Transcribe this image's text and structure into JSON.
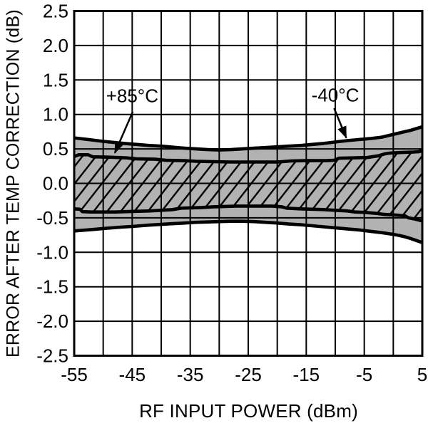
{
  "chart_data": {
    "type": "area",
    "title": "",
    "xlabel": "RF INPUT POWER (dBm)",
    "ylabel": "ERROR AFTER TEMP CORRECTION (dB)",
    "xlim": [
      -55,
      5
    ],
    "ylim": [
      -2.5,
      2.5
    ],
    "x_ticks": [
      "-55",
      "-45",
      "-35",
      "-25",
      "-15",
      "-5",
      "5"
    ],
    "x_tick_values": [
      -55,
      -45,
      -35,
      -25,
      -15,
      -5,
      5
    ],
    "y_ticks": [
      "2.5",
      "2.0",
      "1.5",
      "1.0",
      "0.5",
      "0.0",
      "-0.5",
      "-1.0",
      "-1.5",
      "-2.0",
      "-2.5"
    ],
    "y_tick_values": [
      2.5,
      2.0,
      1.5,
      1.0,
      0.5,
      0.0,
      -0.5,
      -1.0,
      -1.5,
      -2.0,
      -2.5
    ],
    "x_grid_step": 5,
    "y_grid_step": 0.5,
    "grid": true,
    "legend": "none",
    "bands": [
      {
        "name": "minus40C-error-band",
        "label": "-40°C",
        "hatch": false,
        "upper": [
          [
            -55,
            0.66
          ],
          [
            -52,
            0.63
          ],
          [
            -50,
            0.61
          ],
          [
            -47,
            0.585
          ],
          [
            -45,
            0.57
          ],
          [
            -42,
            0.55
          ],
          [
            -40,
            0.54
          ],
          [
            -38,
            0.525
          ],
          [
            -36,
            0.51
          ],
          [
            -34,
            0.5
          ],
          [
            -32,
            0.49
          ],
          [
            -30,
            0.485
          ],
          [
            -28,
            0.49
          ],
          [
            -26,
            0.5
          ],
          [
            -24,
            0.51
          ],
          [
            -22,
            0.52
          ],
          [
            -20,
            0.53
          ],
          [
            -18,
            0.54
          ],
          [
            -16,
            0.55
          ],
          [
            -14,
            0.565
          ],
          [
            -12,
            0.58
          ],
          [
            -10,
            0.6
          ],
          [
            -8,
            0.62
          ],
          [
            -6,
            0.635
          ],
          [
            -4,
            0.65
          ],
          [
            -2,
            0.67
          ],
          [
            0,
            0.71
          ],
          [
            2,
            0.75
          ],
          [
            3,
            0.77
          ],
          [
            4,
            0.795
          ],
          [
            5,
            0.82
          ]
        ],
        "lower": [
          [
            -55,
            -0.69
          ],
          [
            -52,
            -0.67
          ],
          [
            -50,
            -0.655
          ],
          [
            -47,
            -0.635
          ],
          [
            -45,
            -0.625
          ],
          [
            -42,
            -0.605
          ],
          [
            -40,
            -0.595
          ],
          [
            -38,
            -0.585
          ],
          [
            -36,
            -0.575
          ],
          [
            -34,
            -0.565
          ],
          [
            -32,
            -0.56
          ],
          [
            -30,
            -0.555
          ],
          [
            -28,
            -0.55
          ],
          [
            -26,
            -0.55
          ],
          [
            -24,
            -0.555
          ],
          [
            -22,
            -0.565
          ],
          [
            -20,
            -0.575
          ],
          [
            -18,
            -0.59
          ],
          [
            -16,
            -0.6
          ],
          [
            -14,
            -0.615
          ],
          [
            -12,
            -0.63
          ],
          [
            -10,
            -0.645
          ],
          [
            -8,
            -0.66
          ],
          [
            -6,
            -0.675
          ],
          [
            -4,
            -0.695
          ],
          [
            -2,
            -0.715
          ],
          [
            0,
            -0.74
          ],
          [
            1,
            -0.755
          ],
          [
            2,
            -0.775
          ],
          [
            3,
            -0.8
          ],
          [
            4,
            -0.83
          ],
          [
            5,
            -0.86
          ]
        ]
      },
      {
        "name": "plus85C-error-band",
        "label": "+85°C",
        "hatch": true,
        "upper": [
          [
            -55,
            0.39
          ],
          [
            -54.2,
            0.415
          ],
          [
            -52.6,
            0.415
          ],
          [
            -51.8,
            0.385
          ],
          [
            -49,
            0.38
          ],
          [
            -46,
            0.37
          ],
          [
            -44.2,
            0.355
          ],
          [
            -41,
            0.35
          ],
          [
            -39.2,
            0.335
          ],
          [
            -36,
            0.33
          ],
          [
            -34,
            0.32
          ],
          [
            -31,
            0.315
          ],
          [
            -28,
            0.31
          ],
          [
            -24,
            0.31
          ],
          [
            -20,
            0.31
          ],
          [
            -17.5,
            0.325
          ],
          [
            -15,
            0.33
          ],
          [
            -11.5,
            0.33
          ],
          [
            -10.2,
            0.335
          ],
          [
            -9.4,
            0.365
          ],
          [
            -7,
            0.37
          ],
          [
            -4.5,
            0.375
          ],
          [
            -2.6,
            0.4
          ],
          [
            -1.4,
            0.43
          ],
          [
            -0.5,
            0.44
          ],
          [
            1.5,
            0.448
          ],
          [
            3.5,
            0.455
          ],
          [
            4.4,
            0.46
          ],
          [
            5,
            0.475
          ]
        ],
        "lower": [
          [
            -55,
            -0.37
          ],
          [
            -54,
            -0.375
          ],
          [
            -53.6,
            -0.41
          ],
          [
            -52,
            -0.415
          ],
          [
            -48,
            -0.415
          ],
          [
            -46,
            -0.41
          ],
          [
            -44,
            -0.405
          ],
          [
            -42,
            -0.4
          ],
          [
            -40,
            -0.39
          ],
          [
            -38,
            -0.38
          ],
          [
            -36.6,
            -0.36
          ],
          [
            -35,
            -0.355
          ],
          [
            -33,
            -0.35
          ],
          [
            -31,
            -0.34
          ],
          [
            -29,
            -0.335
          ],
          [
            -27,
            -0.33
          ],
          [
            -24,
            -0.33
          ],
          [
            -21,
            -0.33
          ],
          [
            -19.2,
            -0.34
          ],
          [
            -18.4,
            -0.36
          ],
          [
            -16,
            -0.37
          ],
          [
            -14,
            -0.375
          ],
          [
            -12,
            -0.38
          ],
          [
            -10,
            -0.39
          ],
          [
            -8,
            -0.4
          ],
          [
            -6.6,
            -0.415
          ],
          [
            -5,
            -0.42
          ],
          [
            -3,
            -0.435
          ],
          [
            -1.5,
            -0.45
          ],
          [
            0.5,
            -0.46
          ],
          [
            2,
            -0.47
          ],
          [
            2.6,
            -0.5
          ],
          [
            3.8,
            -0.52
          ],
          [
            5,
            -0.545
          ]
        ]
      }
    ],
    "annotations": [
      {
        "id": "plus85C-callout",
        "text": "+85°C",
        "text_x": -45.0,
        "text_y": 1.27,
        "arrow_from": [
          -44.9,
          1.04
        ],
        "arrow_to": [
          -48.0,
          0.44
        ]
      },
      {
        "id": "minus40C-callout",
        "text": "-40°C",
        "text_x": -10.0,
        "text_y": 1.28,
        "arrow_from": [
          -10.2,
          1.09
        ],
        "arrow_to": [
          -8.1,
          0.66
        ]
      }
    ],
    "colors": {
      "band_fill": "#b2b2b2",
      "line": "#000000",
      "grid": "#000000",
      "background": "#ffffff",
      "text": "#000000"
    }
  }
}
